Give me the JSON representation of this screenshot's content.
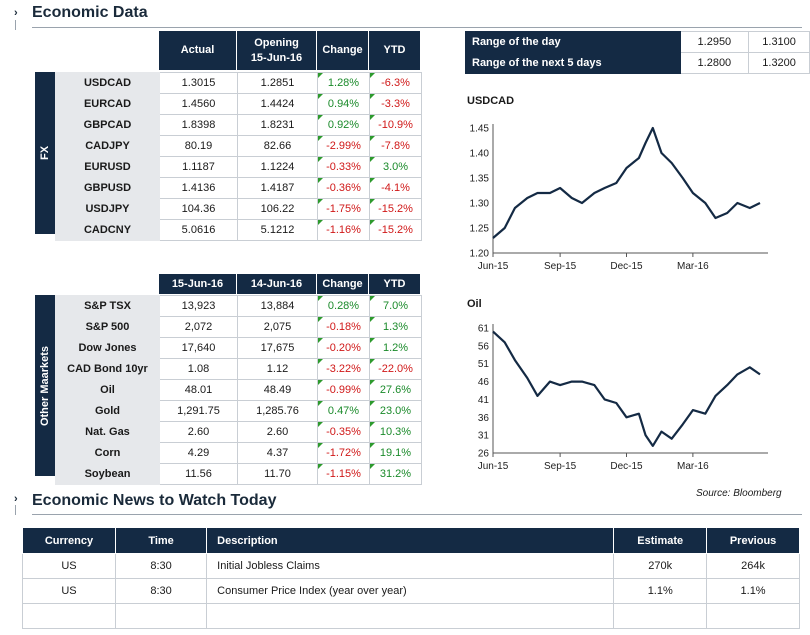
{
  "economic_data": {
    "title": "Economic Data"
  },
  "fx": {
    "side_label": "FX",
    "headers": [
      "Actual",
      "Opening\n15-Jun-16",
      "Change",
      "YTD"
    ],
    "rows": [
      {
        "pair": "USDCAD",
        "actual": "1.3015",
        "opening": "1.2851",
        "change": "1.28%",
        "ytd": "-6.3%"
      },
      {
        "pair": "EURCAD",
        "actual": "1.4560",
        "opening": "1.4424",
        "change": "0.94%",
        "ytd": "-3.3%"
      },
      {
        "pair": "GBPCAD",
        "actual": "1.8398",
        "opening": "1.8231",
        "change": "0.92%",
        "ytd": "-10.9%"
      },
      {
        "pair": "CADJPY",
        "actual": "80.19",
        "opening": "82.66",
        "change": "-2.99%",
        "ytd": "-7.8%"
      },
      {
        "pair": "EURUSD",
        "actual": "1.1187",
        "opening": "1.1224",
        "change": "-0.33%",
        "ytd": "3.0%"
      },
      {
        "pair": "GBPUSD",
        "actual": "1.4136",
        "opening": "1.4187",
        "change": "-0.36%",
        "ytd": "-4.1%"
      },
      {
        "pair": "USDJPY",
        "actual": "104.36",
        "opening": "106.22",
        "change": "-1.75%",
        "ytd": "-15.2%"
      },
      {
        "pair": "CADCNY",
        "actual": "5.0616",
        "opening": "5.1212",
        "change": "-1.16%",
        "ytd": "-15.2%"
      }
    ]
  },
  "markets": {
    "side_label": "Other Maarkets",
    "headers": [
      "15-Jun-16",
      "14-Jun-16",
      "Change",
      "YTD"
    ],
    "rows": [
      {
        "name": "S&P TSX",
        "today": "13,923",
        "prev": "13,884",
        "change": "0.28%",
        "ytd": "7.0%"
      },
      {
        "name": "S&P 500",
        "today": "2,072",
        "prev": "2,075",
        "change": "-0.18%",
        "ytd": "1.3%"
      },
      {
        "name": "Dow Jones",
        "today": "17,640",
        "prev": "17,675",
        "change": "-0.20%",
        "ytd": "1.2%"
      },
      {
        "name": "CAD Bond 10yr",
        "today": "1.08",
        "prev": "1.12",
        "change": "-3.22%",
        "ytd": "-22.0%"
      },
      {
        "name": "Oil",
        "today": "48.01",
        "prev": "48.49",
        "change": "-0.99%",
        "ytd": "27.6%"
      },
      {
        "name": "Gold",
        "today": "1,291.75",
        "prev": "1,285.76",
        "change": "0.47%",
        "ytd": "23.0%"
      },
      {
        "name": "Nat. Gas",
        "today": "2.60",
        "prev": "2.60",
        "change": "-0.35%",
        "ytd": "10.3%"
      },
      {
        "name": "Corn",
        "today": "4.29",
        "prev": "4.37",
        "change": "-1.72%",
        "ytd": "19.1%"
      },
      {
        "name": "Soybean",
        "today": "11.56",
        "prev": "11.70",
        "change": "-1.15%",
        "ytd": "31.2%"
      }
    ]
  },
  "ranges": [
    {
      "label": "Range of the day",
      "low": "1.2950",
      "high": "1.3100"
    },
    {
      "label": "Range of the next 5 days",
      "low": "1.2800",
      "high": "1.3200"
    }
  ],
  "source": "Source: Bloomberg",
  "news": {
    "title": "Economic News to Watch Today",
    "headers": [
      "Currency",
      "Time",
      "Description",
      "Estimate",
      "Previous"
    ],
    "rows": [
      {
        "currency": "US",
        "time": "8:30",
        "description": "Initial Jobless Claims",
        "estimate": "270k",
        "previous": "264k"
      },
      {
        "currency": "US",
        "time": "8:30",
        "description": "Consumer Price Index  (year over year)",
        "estimate": "1.1%",
        "previous": "1.1%"
      },
      {
        "currency": "",
        "time": "",
        "description": "",
        "estimate": "",
        "previous": ""
      }
    ]
  },
  "chart_data": [
    {
      "type": "line",
      "title": "USDCAD",
      "xlabel": "",
      "ylabel": "",
      "ylim": [
        1.2,
        1.45
      ],
      "yticks": [
        "1.20",
        "1.25",
        "1.30",
        "1.35",
        "1.40",
        "1.45"
      ],
      "xticks": [
        "Jun-15",
        "Sep-15",
        "Dec-15",
        "Mar-16"
      ],
      "x": [
        "2015-06-15",
        "2015-07-01",
        "2015-07-15",
        "2015-08-01",
        "2015-08-15",
        "2015-09-01",
        "2015-09-15",
        "2015-10-01",
        "2015-10-15",
        "2015-11-01",
        "2015-11-15",
        "2015-12-01",
        "2015-12-15",
        "2016-01-01",
        "2016-01-10",
        "2016-01-20",
        "2016-02-01",
        "2016-02-15",
        "2016-03-01",
        "2016-03-15",
        "2016-04-01",
        "2016-04-15",
        "2016-05-01",
        "2016-05-15",
        "2016-06-01",
        "2016-06-15"
      ],
      "series": [
        {
          "values": [
            1.23,
            1.25,
            1.29,
            1.31,
            1.32,
            1.32,
            1.33,
            1.31,
            1.3,
            1.32,
            1.33,
            1.34,
            1.37,
            1.39,
            1.42,
            1.45,
            1.4,
            1.38,
            1.35,
            1.32,
            1.3,
            1.27,
            1.28,
            1.3,
            1.29,
            1.3
          ]
        }
      ]
    },
    {
      "type": "line",
      "title": "Oil",
      "xlabel": "",
      "ylabel": "",
      "ylim": [
        26,
        61
      ],
      "yticks": [
        "26",
        "31",
        "36",
        "41",
        "46",
        "51",
        "56",
        "61"
      ],
      "xticks": [
        "Jun-15",
        "Sep-15",
        "Dec-15",
        "Mar-16"
      ],
      "x": [
        "2015-06-15",
        "2015-07-01",
        "2015-07-15",
        "2015-08-01",
        "2015-08-15",
        "2015-09-01",
        "2015-09-15",
        "2015-10-01",
        "2015-10-15",
        "2015-11-01",
        "2015-11-15",
        "2015-12-01",
        "2015-12-15",
        "2016-01-01",
        "2016-01-10",
        "2016-01-20",
        "2016-02-01",
        "2016-02-15",
        "2016-03-01",
        "2016-03-15",
        "2016-04-01",
        "2016-04-15",
        "2016-05-01",
        "2016-05-15",
        "2016-06-01",
        "2016-06-15"
      ],
      "series": [
        {
          "values": [
            60,
            57,
            52,
            47,
            42,
            46,
            45,
            46,
            46,
            45,
            41,
            40,
            36,
            37,
            31,
            28,
            32,
            30,
            34,
            38,
            37,
            42,
            45,
            48,
            50,
            48
          ]
        }
      ]
    }
  ]
}
